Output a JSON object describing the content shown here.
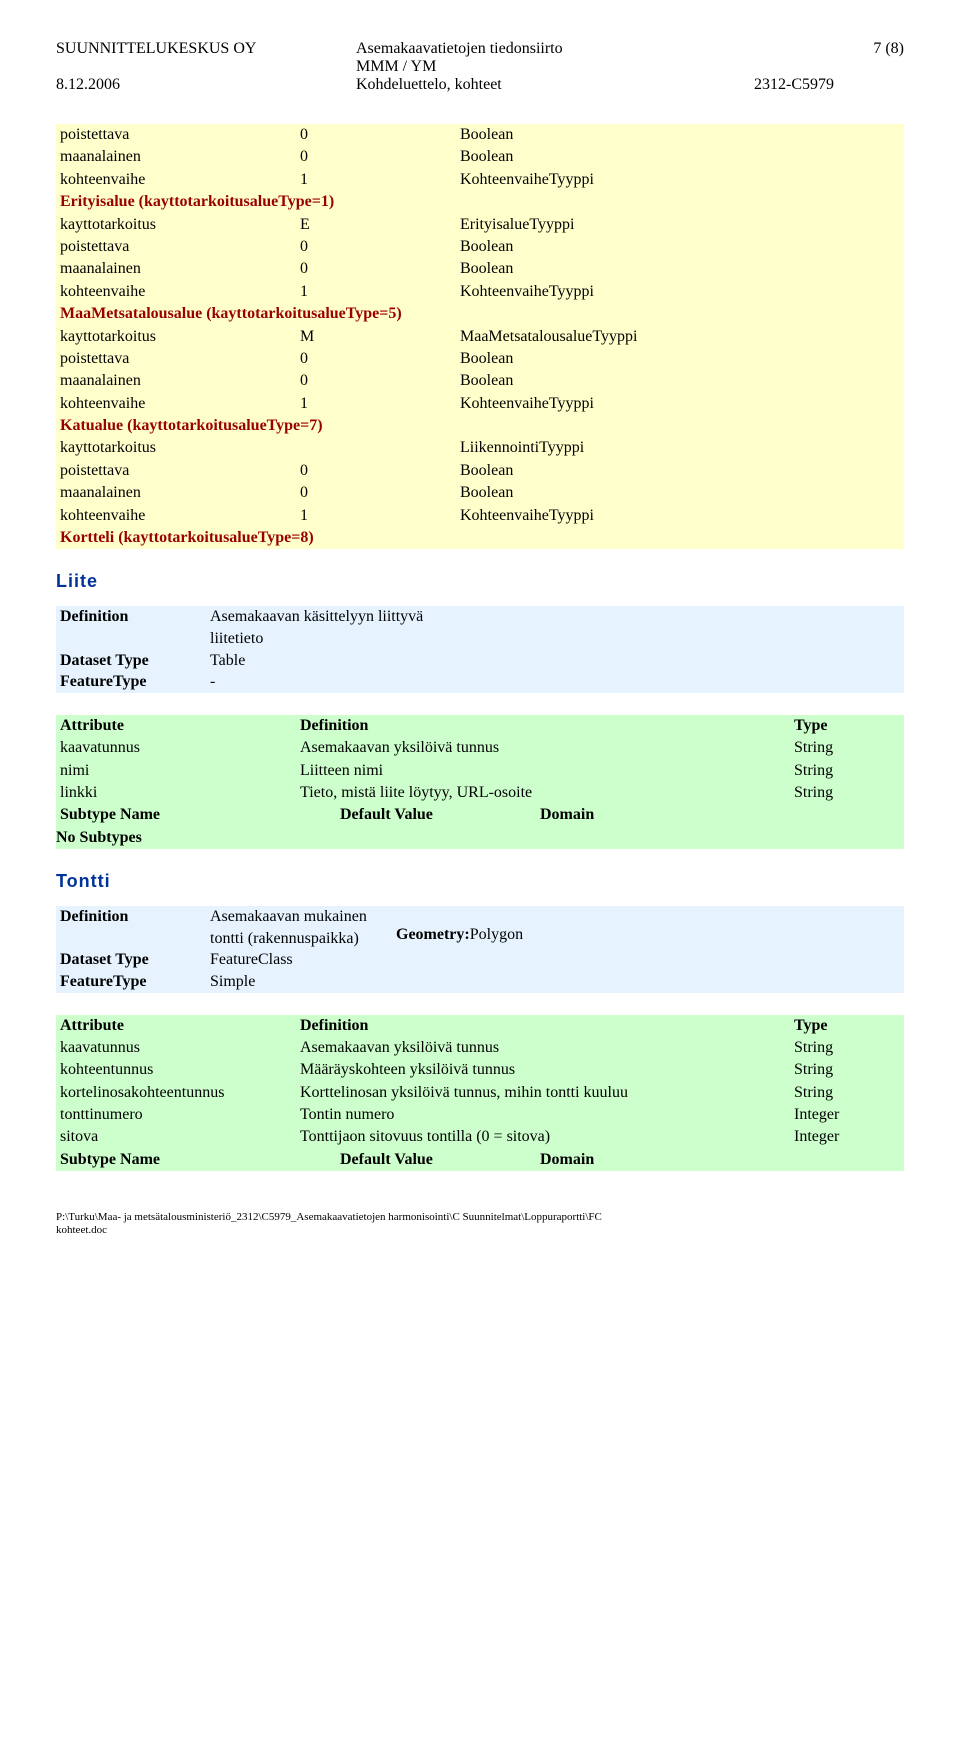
{
  "header": {
    "company": "SUUNNITTELUKESKUS OY",
    "title1": "Asemakaavatietojen tiedonsiirto",
    "title2": "MMM / YM",
    "date": "8.12.2006",
    "doc": "Kohdeluettelo, kohteet",
    "pagenum": "7 (8)",
    "code": "2312-C5979"
  },
  "yellow": {
    "rows1": [
      [
        "poistettava",
        "0",
        "Boolean"
      ],
      [
        "maanalainen",
        "0",
        "Boolean"
      ],
      [
        "kohteenvaihe",
        "1",
        "KohteenvaiheTyyppi"
      ]
    ],
    "group1": "Erityisalue (kayttotarkoitusalueType=1)",
    "rows2": [
      [
        "kayttotarkoitus",
        "E",
        "ErityisalueTyyppi"
      ],
      [
        "poistettava",
        "0",
        "Boolean"
      ],
      [
        "maanalainen",
        "0",
        "Boolean"
      ],
      [
        "kohteenvaihe",
        "1",
        "KohteenvaiheTyyppi"
      ]
    ],
    "group2": "MaaMetsatalousalue (kayttotarkoitusalueType=5)",
    "rows3": [
      [
        "kayttotarkoitus",
        "M",
        "MaaMetsatalousalueTyyppi"
      ],
      [
        "poistettava",
        "0",
        "Boolean"
      ],
      [
        "maanalainen",
        "0",
        "Boolean"
      ],
      [
        "kohteenvaihe",
        "1",
        "KohteenvaiheTyyppi"
      ]
    ],
    "group3": "Katualue (kayttotarkoitusalueType=7)",
    "rows4": [
      [
        "kayttotarkoitus",
        "",
        "LiikennointiTyyppi"
      ],
      [
        "poistettava",
        "0",
        "Boolean"
      ],
      [
        "maanalainen",
        "0",
        "Boolean"
      ],
      [
        "kohteenvaihe",
        "1",
        "KohteenvaiheTyyppi"
      ]
    ],
    "group4": "Kortteli (kayttotarkoitusalueType=8)"
  },
  "liite": {
    "title": "Liite",
    "def_label": "Definition",
    "def_val": "Asemakaavan käsittelyyn liittyvä liitetieto",
    "dst_label": "Dataset Type",
    "dst_val": "Table",
    "ft_label": "FeatureType",
    "ft_val": "-",
    "ah1": "Attribute",
    "ah2": "Definition",
    "ah3": "Type",
    "attrs": [
      [
        "kaavatunnus",
        "Asemakaavan yksilöivä tunnus",
        "String"
      ],
      [
        "nimi",
        "Liitteen nimi",
        "String"
      ],
      [
        "linkki",
        "Tieto, mistä liite löytyy, URL-osoite",
        "String"
      ]
    ],
    "sub1": "Subtype Name",
    "sub2": "Default Value",
    "sub3": "Domain",
    "nosub": "No Subtypes"
  },
  "tontti": {
    "title": "Tontti",
    "def_label": "Definition",
    "def_val": "Asemakaavan mukainen tontti (rakennuspaikka)",
    "dst_label": "Dataset Type",
    "dst_val": "FeatureClass",
    "ft_label": "FeatureType",
    "ft_val": "Simple",
    "geom_label": "Geometry:",
    "geom_val": "Polygon",
    "ah1": "Attribute",
    "ah2": "Definition",
    "ah3": "Type",
    "attrs": [
      [
        "kaavatunnus",
        "Asemakaavan yksilöivä tunnus",
        "String"
      ],
      [
        "kohteentunnus",
        "Määräyskohteen yksilöivä tunnus",
        "String"
      ],
      [
        "kortelinosakohteentunnus",
        "Korttelinosan yksilöivä tunnus, mihin tontti kuuluu",
        "String"
      ],
      [
        "tonttinumero",
        "Tontin numero",
        "Integer"
      ],
      [
        "sitova",
        "Tonttijaon sitovuus tontilla (0 = sitova)",
        "Integer"
      ]
    ],
    "sub1": "Subtype Name",
    "sub2": "Default Value",
    "sub3": "Domain"
  },
  "footer": {
    "line1": "P:\\Turku\\Maa- ja metsätalousministeriö_2312\\C5979_Asemakaavatietojen harmonisointi\\C Suunnitelmat\\Loppuraportti\\FC",
    "line2": "kohteet.doc"
  }
}
